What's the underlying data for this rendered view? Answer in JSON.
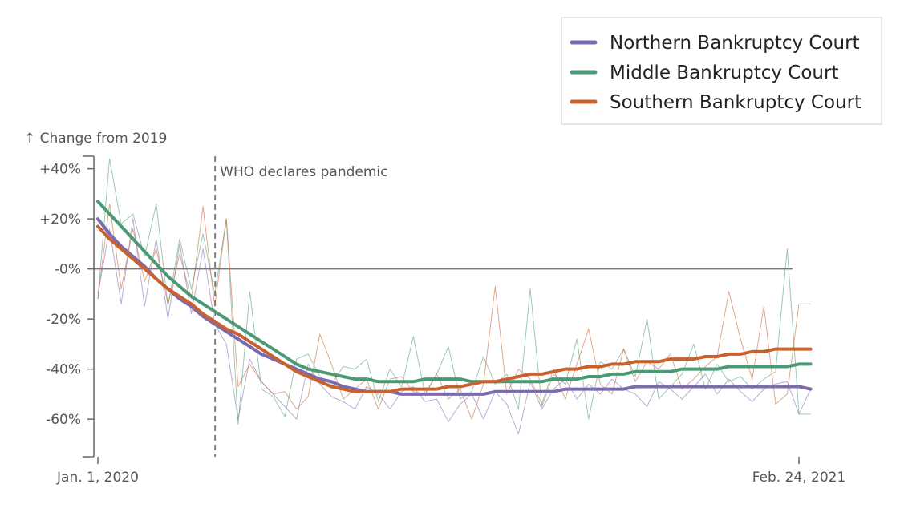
{
  "chart_data": {
    "type": "line",
    "title": "",
    "ylabel": "↑ Change from 2019",
    "xlabel": "",
    "ylim": [
      -75,
      45
    ],
    "y_ticks": [
      {
        "value": 40,
        "label": "+40%"
      },
      {
        "value": 20,
        "label": "+20%"
      },
      {
        "value": 0,
        "label": "-0%"
      },
      {
        "value": -20,
        "label": "-20%"
      },
      {
        "value": -40,
        "label": "-40%"
      },
      {
        "value": -60,
        "label": "-60%"
      }
    ],
    "x_ticks": [
      {
        "index": 0,
        "label": "Jan. 1, 2020"
      },
      {
        "index": 60,
        "label": "Feb. 24, 2021"
      }
    ],
    "x_range": [
      0,
      60
    ],
    "legend_position": "top-right",
    "annotation": {
      "index": 10,
      "label": "WHO declares pandemic"
    },
    "series": [
      {
        "name": "Northern Bankruptcy Court",
        "color": "#7b6bb0",
        "smoothed": [
          20,
          14,
          9,
          5,
          1,
          -4,
          -8,
          -12,
          -15,
          -19,
          -22,
          -25,
          -28,
          -31,
          -34,
          -36,
          -38,
          -40,
          -42,
          -44,
          -45,
          -47,
          -48,
          -49,
          -49,
          -49,
          -50,
          -50,
          -50,
          -50,
          -50,
          -50,
          -50,
          -50,
          -49,
          -49,
          -49,
          -49,
          -49,
          -49,
          -48,
          -48,
          -48,
          -48,
          -48,
          -48,
          -47,
          -47,
          -47,
          -47,
          -47,
          -47,
          -47,
          -47,
          -47,
          -47,
          -47,
          -47,
          -47,
          -47,
          -47,
          -48
        ],
        "weekly": [
          -10,
          16,
          -14,
          20,
          -15,
          12,
          -20,
          10,
          -18,
          8,
          -22,
          -30,
          -60,
          -36,
          -45,
          -50,
          -55,
          -60,
          -38,
          -46,
          -51,
          -53,
          -56,
          -47,
          -50,
          -56,
          -49,
          -47,
          -53,
          -52,
          -61,
          -54,
          -50,
          -60,
          -49,
          -54,
          -66,
          -45,
          -56,
          -48,
          -44,
          -52,
          -46,
          -50,
          -44,
          -48,
          -50,
          -55,
          -45,
          -48,
          -52,
          -47,
          -42,
          -50,
          -44,
          -49,
          -53,
          -48,
          -46,
          -45,
          -58,
          -48
        ]
      },
      {
        "name": "Middle Bankruptcy Court",
        "color": "#4b9a76",
        "smoothed": [
          27,
          22,
          17,
          12,
          7,
          2,
          -3,
          -7,
          -11,
          -14,
          -17,
          -20,
          -23,
          -26,
          -29,
          -32,
          -35,
          -38,
          -40,
          -41,
          -42,
          -43,
          -44,
          -44,
          -45,
          -45,
          -45,
          -45,
          -44,
          -44,
          -44,
          -44,
          -45,
          -45,
          -45,
          -45,
          -45,
          -45,
          -45,
          -44,
          -44,
          -44,
          -43,
          -43,
          -42,
          -42,
          -41,
          -41,
          -41,
          -41,
          -40,
          -40,
          -40,
          -40,
          -39,
          -39,
          -39,
          -39,
          -39,
          -39,
          -38,
          -38
        ],
        "weekly": [
          -12,
          44,
          18,
          22,
          5,
          26,
          -15,
          12,
          -8,
          14,
          -10,
          20,
          -62,
          -9,
          -48,
          -51,
          -59,
          -36,
          -34,
          -43,
          -46,
          -39,
          -40,
          -36,
          -53,
          -40,
          -47,
          -27,
          -50,
          -42,
          -31,
          -52,
          -49,
          -35,
          -46,
          -42,
          -56,
          -8,
          -55,
          -42,
          -46,
          -28,
          -60,
          -37,
          -40,
          -32,
          -43,
          -20,
          -52,
          -47,
          -42,
          -30,
          -48,
          -38,
          -45,
          -43,
          -48,
          -44,
          -41,
          8,
          -58,
          -58
        ]
      },
      {
        "name": "Southern Bankruptcy Court",
        "color": "#c9612f",
        "smoothed": [
          17,
          12,
          8,
          4,
          0,
          -4,
          -8,
          -11,
          -14,
          -18,
          -21,
          -24,
          -26,
          -29,
          -32,
          -35,
          -38,
          -41,
          -43,
          -45,
          -47,
          -48,
          -49,
          -49,
          -49,
          -49,
          -48,
          -48,
          -48,
          -48,
          -47,
          -47,
          -46,
          -45,
          -45,
          -44,
          -43,
          -42,
          -42,
          -41,
          -40,
          -40,
          -39,
          -39,
          -38,
          -38,
          -37,
          -37,
          -37,
          -36,
          -36,
          -36,
          -35,
          -35,
          -34,
          -34,
          -33,
          -33,
          -32,
          -32,
          -32,
          -32
        ],
        "weekly": [
          -12,
          26,
          -8,
          16,
          -5,
          8,
          -14,
          6,
          -12,
          25,
          -15,
          20,
          -47,
          -38,
          -45,
          -50,
          -49,
          -56,
          -51,
          -26,
          -38,
          -52,
          -48,
          -44,
          -56,
          -44,
          -43,
          -49,
          -50,
          -42,
          -52,
          -48,
          -60,
          -46,
          -7,
          -50,
          -40,
          -44,
          -54,
          -40,
          -52,
          -38,
          -24,
          -46,
          -50,
          -32,
          -45,
          -37,
          -40,
          -34,
          -48,
          -44,
          -39,
          -35,
          -9,
          -28,
          -44,
          -15,
          -54,
          -50,
          -14,
          -14
        ]
      }
    ]
  }
}
